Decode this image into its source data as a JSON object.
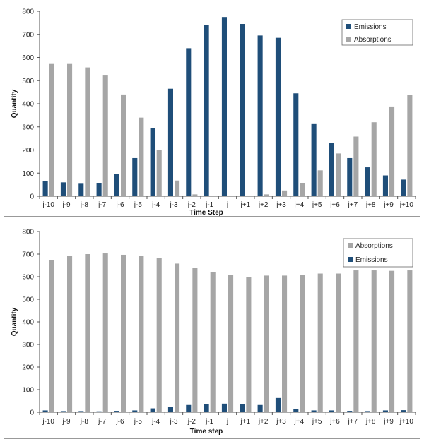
{
  "chart_data": [
    {
      "type": "bar",
      "title": "",
      "xlabel": "Time Step",
      "ylabel": "Quantity",
      "ylim": [
        0,
        800
      ],
      "yticks": [
        0,
        100,
        200,
        300,
        400,
        500,
        600,
        700,
        800
      ],
      "grid": false,
      "legend_position": "top-right",
      "categories": [
        "j-10",
        "j-9",
        "j-8",
        "j-7",
        "j-6",
        "j-5",
        "j-4",
        "j-3",
        "j-2",
        "j-1",
        "j",
        "j+1",
        "j+2",
        "j+3",
        "j+4",
        "j+5",
        "j+6",
        "j+7",
        "j+8",
        "j+9",
        "j+10"
      ],
      "series": [
        {
          "name": "Emissions",
          "color": "#1f4e79",
          "values": [
            65,
            60,
            57,
            58,
            95,
            165,
            295,
            465,
            640,
            740,
            775,
            745,
            695,
            685,
            445,
            315,
            230,
            165,
            125,
            90,
            72
          ]
        },
        {
          "name": "Absorptions",
          "color": "#a6a6a6",
          "values": [
            575,
            575,
            557,
            525,
            440,
            340,
            200,
            68,
            8,
            0,
            0,
            3,
            8,
            25,
            58,
            112,
            185,
            258,
            320,
            388,
            437
          ]
        }
      ]
    },
    {
      "type": "bar",
      "title": "",
      "xlabel": "Time step",
      "ylabel": "Quantity",
      "ylim": [
        0,
        800
      ],
      "yticks": [
        0,
        100,
        200,
        300,
        400,
        500,
        600,
        700,
        800
      ],
      "grid": false,
      "legend_position": "top-right",
      "categories": [
        "j-10",
        "j-9",
        "j-8",
        "j-7",
        "j-6",
        "j-5",
        "j-4",
        "j-3",
        "j-2",
        "j-1",
        "j",
        "j+1",
        "j+2",
        "j+3",
        "j+4",
        "j+5",
        "j+6",
        "j+7",
        "j+8",
        "j+9",
        "j+10"
      ],
      "series": [
        {
          "name": "Absorptions",
          "color": "#a6a6a6",
          "values": [
            675,
            693,
            700,
            703,
            697,
            692,
            683,
            658,
            638,
            620,
            608,
            597,
            605,
            605,
            607,
            614,
            614,
            628,
            628,
            626,
            628
          ]
        },
        {
          "name": "Emissions",
          "color": "#1f4e79",
          "values": [
            8,
            5,
            5,
            4,
            6,
            8,
            17,
            25,
            32,
            37,
            38,
            37,
            32,
            63,
            15,
            8,
            8,
            6,
            5,
            8,
            9
          ]
        }
      ]
    }
  ]
}
